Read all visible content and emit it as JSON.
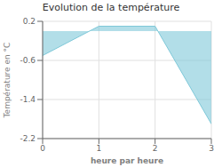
{
  "chart_data": {
    "type": "area",
    "title": "Evolution de la température",
    "x": [
      0,
      1,
      2,
      3
    ],
    "values": [
      -0.5,
      0.1,
      0.1,
      -1.9
    ],
    "xlim": [
      0,
      3
    ],
    "xticks": [
      0,
      1,
      2,
      3
    ],
    "ylim": [
      -2.2,
      0.2
    ],
    "yticks": [
      0.2,
      -0.6,
      -1.4,
      -2.2
    ],
    "xlabel": "heure par heure",
    "ylabel": "Température en °C",
    "color": "#7ec8d8",
    "grid": true
  }
}
